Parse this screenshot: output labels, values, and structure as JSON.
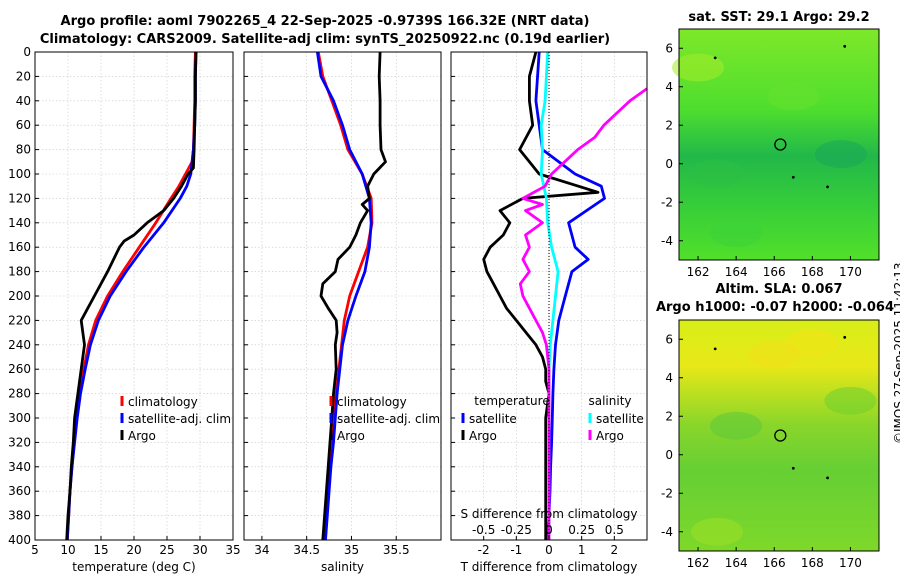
{
  "title_line1": "Argo profile: aoml 7902265_4 22-Sep-2025 -0.9739S 166.32E (NRT data)",
  "title_line2": "Climatology: CARS2009. Satellite-adj clim: synTS_20250922.nc (0.19d earlier)",
  "sst_title": "sat. SST: 29.1 Argo: 29.2",
  "sla_title1": "Altim. SLA: 0.067",
  "sla_title2": "Argo h1000: -0.07 h2000: -0.064",
  "timestamp": "©IMOS 27-Sep-2025 11:42:13",
  "chart_data": [
    {
      "type": "line",
      "name": "temperature-profile",
      "xlabel": "temperature (deg C)",
      "ylabel": "depth",
      "xlim": [
        5,
        35
      ],
      "ylim": [
        400,
        0
      ],
      "xticks": [
        5,
        10,
        15,
        20,
        25,
        30,
        35
      ],
      "yticks": [
        0,
        20,
        40,
        60,
        80,
        100,
        120,
        140,
        160,
        180,
        200,
        220,
        240,
        260,
        280,
        300,
        320,
        340,
        360,
        380,
        400
      ],
      "grid": true,
      "legend": [
        "climatology",
        "satellite-adj. clim",
        "Argo"
      ],
      "series": [
        {
          "name": "climatology",
          "color": "#ff0000",
          "depth": [
            0,
            20,
            40,
            60,
            80,
            90,
            100,
            110,
            120,
            140,
            160,
            180,
            200,
            220,
            240,
            260,
            280,
            300,
            320,
            340,
            360,
            380,
            400
          ],
          "values": [
            29.3,
            29.2,
            29.2,
            29.1,
            29.0,
            28.8,
            27.8,
            26.8,
            25.6,
            23.3,
            20.8,
            18.3,
            16.0,
            14.2,
            13.1,
            12.4,
            11.8,
            11.3,
            10.9,
            10.6,
            10.3,
            10.1,
            9.9
          ]
        },
        {
          "name": "satellite-adj. clim",
          "color": "#0000ff",
          "depth": [
            0,
            20,
            40,
            60,
            80,
            100,
            110,
            120,
            140,
            160,
            180,
            200,
            220,
            240,
            260,
            280,
            300,
            320,
            340,
            360,
            380,
            400
          ],
          "values": [
            29.4,
            29.3,
            29.3,
            29.2,
            29.0,
            28.6,
            28.0,
            27.0,
            24.5,
            21.5,
            18.8,
            16.4,
            14.6,
            13.4,
            12.6,
            11.9,
            11.4,
            11.0,
            10.6,
            10.3,
            10.1,
            9.9
          ]
        },
        {
          "name": "Argo",
          "color": "#000000",
          "depth": [
            0,
            20,
            40,
            60,
            80,
            95,
            100,
            110,
            120,
            130,
            140,
            150,
            155,
            160,
            180,
            200,
            210,
            220,
            240,
            260,
            280,
            300,
            320,
            340,
            360,
            380,
            400
          ],
          "values": [
            29.4,
            29.3,
            29.3,
            29.2,
            29.1,
            29.0,
            28.2,
            27.2,
            26.0,
            24.5,
            22.0,
            20.0,
            18.5,
            17.8,
            16.0,
            14.0,
            13.0,
            12.0,
            12.5,
            12.0,
            11.5,
            11.0,
            10.8,
            10.5,
            10.3,
            10.0,
            9.8
          ]
        }
      ]
    },
    {
      "type": "line",
      "name": "salinity-profile",
      "xlabel": "salinity",
      "xlim": [
        33.8,
        36.0
      ],
      "ylim": [
        400,
        0
      ],
      "xticks": [
        34,
        34.5,
        35,
        35.5
      ],
      "grid": true,
      "legend": [
        "climatology",
        "satellite-adj. clim",
        "Argo"
      ],
      "series": [
        {
          "name": "climatology",
          "color": "#ff0000",
          "depth": [
            0,
            20,
            40,
            60,
            80,
            100,
            120,
            140,
            160,
            180,
            200,
            220,
            240,
            260,
            280,
            300,
            320,
            340,
            360,
            380,
            400
          ],
          "values": [
            34.63,
            34.68,
            34.78,
            34.88,
            34.96,
            35.12,
            35.22,
            35.23,
            35.18,
            35.08,
            34.98,
            34.92,
            34.89,
            34.86,
            34.83,
            34.8,
            34.78,
            34.76,
            34.74,
            34.72,
            34.7
          ]
        },
        {
          "name": "satellite-adj. clim",
          "color": "#0000ff",
          "depth": [
            0,
            20,
            40,
            60,
            80,
            100,
            120,
            140,
            160,
            180,
            200,
            220,
            240,
            260,
            280,
            300,
            320,
            340,
            360,
            380,
            400
          ],
          "values": [
            34.62,
            34.66,
            34.8,
            34.9,
            34.98,
            35.12,
            35.2,
            35.22,
            35.2,
            35.15,
            35.05,
            34.96,
            34.9,
            34.87,
            34.84,
            34.82,
            34.8,
            34.77,
            34.75,
            34.73,
            34.71
          ]
        },
        {
          "name": "Argo",
          "color": "#000000",
          "depth": [
            0,
            20,
            40,
            60,
            80,
            90,
            100,
            110,
            120,
            125,
            130,
            140,
            150,
            160,
            170,
            180,
            190,
            200,
            210,
            220,
            230,
            240,
            260,
            280,
            300,
            320,
            340,
            360,
            380,
            400
          ],
          "values": [
            35.32,
            35.31,
            35.32,
            35.32,
            35.33,
            35.38,
            35.25,
            35.18,
            35.2,
            35.12,
            35.18,
            35.1,
            35.05,
            34.98,
            34.85,
            34.82,
            34.68,
            34.66,
            34.74,
            34.83,
            34.84,
            34.82,
            34.83,
            34.8,
            34.78,
            34.76,
            34.74,
            34.72,
            34.7,
            34.68
          ]
        }
      ]
    },
    {
      "type": "line",
      "name": "difference-profile",
      "xlabel": "T difference from climatology",
      "xlabel_top": "S difference from climatology",
      "xlim": [
        -3,
        3
      ],
      "ylim": [
        400,
        0
      ],
      "xticks": [
        -2,
        -1,
        0,
        1,
        2
      ],
      "xticks_top": [
        "-0.5",
        "-0.25",
        "0",
        "0.25",
        "0.5"
      ],
      "grid": true,
      "legend_left_title": "temperature",
      "legend_right_title": "salinity",
      "legend_left": [
        "satellite",
        "Argo"
      ],
      "legend_right": [
        "satellite",
        "Argo"
      ],
      "series": [
        {
          "name": "temperature satellite",
          "color": "#0000ff",
          "depth": [
            0,
            40,
            60,
            80,
            100,
            110,
            120,
            140,
            160,
            170,
            180,
            200,
            220,
            240,
            260,
            280,
            300,
            320,
            340,
            360,
            380,
            400
          ],
          "values": [
            -0.3,
            -0.4,
            -0.3,
            -0.2,
            0.8,
            1.6,
            1.7,
            0.6,
            0.8,
            1.2,
            0.7,
            0.5,
            0.3,
            0.2,
            0.15,
            0.12,
            0.1,
            0.08,
            0.05,
            0.03,
            0.0,
            -0.05
          ]
        },
        {
          "name": "temperature Argo",
          "color": "#000000",
          "depth": [
            0,
            20,
            40,
            60,
            80,
            90,
            100,
            110,
            115,
            120,
            130,
            140,
            150,
            160,
            170,
            180,
            190,
            200,
            210,
            220,
            230,
            240,
            250,
            260,
            270,
            280,
            300,
            320,
            340,
            360,
            380,
            400
          ],
          "values": [
            -0.4,
            -0.6,
            -0.6,
            -0.5,
            -0.9,
            -0.6,
            -0.3,
            0.9,
            1.5,
            -0.8,
            -1.5,
            -1.2,
            -1.4,
            -1.8,
            -2.0,
            -1.9,
            -1.7,
            -1.5,
            -1.3,
            -1.0,
            -0.7,
            -0.4,
            -0.2,
            -0.1,
            -0.1,
            0.0,
            -0.1,
            -0.1,
            -0.1,
            -0.1,
            -0.1,
            -0.1
          ]
        },
        {
          "name": "salinity satellite",
          "color": "#00ffff",
          "depth": [
            0,
            40,
            60,
            80,
            100,
            110,
            120,
            140,
            160,
            180,
            200,
            220,
            240,
            260,
            280,
            300,
            320,
            340,
            360,
            380,
            400
          ],
          "values": [
            -0.01,
            -0.03,
            -0.06,
            -0.05,
            -0.06,
            -0.04,
            -0.02,
            -0.01,
            0.02,
            0.07,
            0.05,
            0.03,
            0.01,
            0.0,
            0.0,
            0.0,
            0.0,
            0.0,
            0.0,
            0.0,
            0.0
          ]
        },
        {
          "name": "salinity Argo",
          "color": "#ff00ff",
          "depth": [
            30,
            40,
            50,
            60,
            70,
            80,
            90,
            100,
            110,
            120,
            125,
            130,
            140,
            150,
            160,
            170,
            180,
            190,
            200,
            210,
            220,
            230,
            240,
            260,
            280,
            300,
            320,
            340,
            360,
            380,
            400
          ],
          "values": [
            0.75,
            0.62,
            0.52,
            0.42,
            0.35,
            0.22,
            0.12,
            0.02,
            -0.03,
            -0.2,
            -0.05,
            -0.18,
            -0.05,
            -0.18,
            -0.15,
            -0.2,
            -0.15,
            -0.22,
            -0.2,
            -0.15,
            -0.1,
            -0.05,
            -0.02,
            0.0,
            0.0,
            0.0,
            0.0,
            0.0,
            0.0,
            0.0,
            0.0
          ]
        }
      ]
    },
    {
      "type": "heatmap",
      "name": "sst-map",
      "title": "sat. SST: 29.1 Argo: 29.2",
      "xlim": [
        161,
        171.5
      ],
      "ylim": [
        -5,
        7
      ],
      "xticks": [
        162,
        164,
        166,
        168,
        170
      ],
      "yticks": [
        -4,
        -2,
        0,
        2,
        4,
        6
      ],
      "marker": {
        "lon": 166.32,
        "lat": 1.0
      }
    },
    {
      "type": "heatmap",
      "name": "sla-map",
      "title": "Altim. SLA: 0.067 / Argo h1000: -0.07 h2000: -0.064",
      "xlim": [
        161,
        171.5
      ],
      "ylim": [
        -5,
        7
      ],
      "xticks": [
        162,
        164,
        166,
        168,
        170
      ],
      "yticks": [
        -4,
        -2,
        0,
        2,
        4,
        6
      ],
      "marker": {
        "lon": 166.32,
        "lat": 1.0
      }
    }
  ]
}
